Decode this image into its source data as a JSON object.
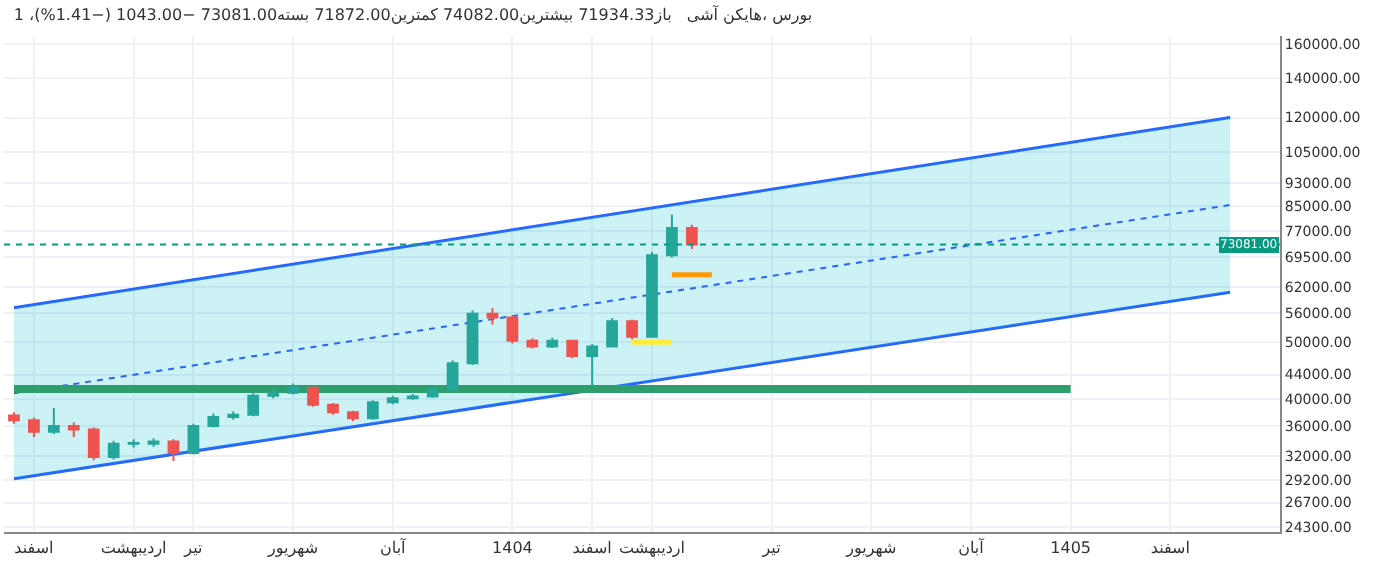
{
  "chart_data": {
    "type": "candlestick",
    "title": "1 ،بورس ،هایکن آشی   باز71934.33 بیشترین74082.00 کمترین71872.00 بسته73081.00 −1043.00 (−1.41%)",
    "categories": [
      null,
      "اسفند",
      null,
      null,
      null,
      null,
      "اردیبهشت",
      null,
      null,
      "تیر",
      null,
      null,
      null,
      null,
      "شهریور",
      null,
      null,
      null,
      null,
      "آبان",
      null,
      null,
      null,
      null,
      null,
      "1404",
      null,
      null,
      null,
      "اسفند",
      null,
      null,
      "اردیبهشت",
      null,
      null,
      null,
      null,
      null,
      "تیر",
      null,
      null,
      null,
      null,
      "شهریور",
      null,
      null,
      null,
      null,
      "آبان",
      null,
      null,
      null,
      null,
      "1405",
      null,
      null,
      null,
      null,
      "اسفند",
      null,
      null,
      null,
      null,
      null
    ],
    "ohlc": [
      [
        37500,
        38000,
        36300,
        36800
      ],
      [
        36800,
        37200,
        34500,
        35200
      ],
      [
        35200,
        38600,
        34900,
        36000
      ],
      [
        36000,
        36500,
        34500,
        35500
      ],
      [
        35500,
        35800,
        31500,
        31900
      ],
      [
        31900,
        34000,
        31600,
        33600
      ],
      [
        33600,
        34200,
        33100,
        33700
      ],
      [
        33600,
        34300,
        33200,
        33900
      ],
      [
        33900,
        34200,
        31400,
        32400
      ],
      [
        32400,
        36300,
        32200,
        36000
      ],
      [
        36000,
        37800,
        35800,
        37300
      ],
      [
        37300,
        38100,
        36900,
        37600
      ],
      [
        37600,
        40900,
        37400,
        40500
      ],
      [
        40500,
        41600,
        40100,
        41000
      ],
      [
        41000,
        42500,
        40700,
        41800
      ],
      [
        41800,
        42000,
        38800,
        39100
      ],
      [
        39100,
        39400,
        37600,
        38000
      ],
      [
        38000,
        38200,
        36700,
        37100
      ],
      [
        37100,
        39800,
        36900,
        39500
      ],
      [
        39500,
        40500,
        39200,
        40100
      ],
      [
        40100,
        40800,
        39900,
        40400
      ],
      [
        40400,
        41900,
        40200,
        41500
      ],
      [
        41500,
        46500,
        41300,
        46000
      ],
      [
        46000,
        56500,
        45700,
        55800
      ],
      [
        55800,
        57000,
        53500,
        55000
      ],
      [
        55000,
        55300,
        49700,
        50200
      ],
      [
        50200,
        50700,
        48700,
        49100
      ],
      [
        49100,
        50800,
        48800,
        50200
      ],
      [
        50200,
        50400,
        46900,
        47300
      ],
      [
        47300,
        49600,
        42200,
        49100
      ],
      [
        49100,
        54800,
        48900,
        54200
      ],
      [
        54200,
        54500,
        50500,
        51000
      ],
      [
        51000,
        71000,
        50800,
        70100
      ],
      [
        70100,
        82200,
        69500,
        78000
      ],
      [
        78000,
        79000,
        71872,
        73081
      ],
      null,
      null,
      null,
      null,
      null,
      null,
      null,
      null,
      null,
      null,
      null,
      null,
      null,
      null,
      null,
      null,
      null,
      null,
      null,
      null,
      null,
      null,
      null,
      null,
      null,
      null,
      null,
      null,
      null
    ],
    "series": [
      {
        "type": "line",
        "values": [
          57100,
          null,
          null,
          null,
          null,
          null,
          null,
          null,
          null,
          null,
          null,
          null,
          null,
          null,
          null,
          null,
          null,
          null,
          null,
          null,
          null,
          null,
          null,
          null,
          null,
          null,
          null,
          null,
          null,
          null,
          null,
          null,
          null,
          null,
          null,
          null,
          null,
          null,
          null,
          null,
          null,
          null,
          null,
          null,
          null,
          null,
          null,
          null,
          null,
          null,
          null,
          null,
          null,
          null,
          null,
          null,
          null,
          null,
          null,
          null,
          null,
          120000,
          null,
          null
        ],
        "color": "#2962ff",
        "line_style": "solid"
      },
      {
        "type": "line",
        "values": [
          29300,
          null,
          null,
          null,
          null,
          null,
          null,
          null,
          null,
          null,
          null,
          null,
          null,
          null,
          null,
          null,
          null,
          null,
          null,
          null,
          null,
          null,
          null,
          null,
          null,
          null,
          null,
          null,
          null,
          null,
          null,
          null,
          null,
          null,
          null,
          null,
          null,
          null,
          null,
          null,
          null,
          null,
          null,
          null,
          null,
          null,
          null,
          null,
          null,
          null,
          null,
          null,
          null,
          null,
          null,
          null,
          null,
          null,
          null,
          null,
          null,
          60700,
          null,
          null
        ],
        "color": "#2962ff",
        "line_style": "solid"
      },
      {
        "type": "line",
        "values": [
          40900,
          null,
          null,
          null,
          null,
          null,
          null,
          null,
          null,
          null,
          null,
          null,
          null,
          null,
          null,
          null,
          null,
          null,
          null,
          null,
          null,
          null,
          null,
          null,
          null,
          null,
          null,
          null,
          null,
          null,
          null,
          null,
          null,
          null,
          null,
          null,
          null,
          null,
          null,
          null,
          null,
          null,
          null,
          null,
          null,
          null,
          null,
          null,
          null,
          null,
          null,
          null,
          null,
          null,
          null,
          null,
          null,
          null,
          null,
          null,
          null,
          85300,
          null,
          null
        ],
        "lower": [
          29300,
          null,
          null,
          null,
          null,
          null,
          null,
          null,
          null,
          null,
          null,
          null,
          null,
          null,
          null,
          null,
          null,
          null,
          null,
          null,
          null,
          null,
          null,
          null,
          null,
          null,
          null,
          null,
          null,
          null,
          null,
          null,
          null,
          null,
          null,
          null,
          null,
          null,
          null,
          null,
          null,
          null,
          null,
          null,
          null,
          null,
          null,
          null,
          null,
          null,
          null,
          null,
          null,
          null,
          null,
          null,
          null,
          null,
          null,
          null,
          null,
          60700,
          null,
          null
        ],
        "upper": [
          57100,
          null,
          null,
          null,
          null,
          null,
          null,
          null,
          null,
          null,
          null,
          null,
          null,
          null,
          null,
          null,
          null,
          null,
          null,
          null,
          null,
          null,
          null,
          null,
          null,
          null,
          null,
          null,
          null,
          null,
          null,
          null,
          null,
          null,
          null,
          null,
          null,
          null,
          null,
          null,
          null,
          null,
          null,
          null,
          null,
          null,
          null,
          null,
          null,
          null,
          null,
          null,
          null,
          null,
          null,
          null,
          null,
          null,
          null,
          null,
          null,
          120000,
          null,
          null
        ],
        "color": "#2962ff",
        "line_style": "dotted"
      },
      {
        "type": "line",
        "values": [
          41600,
          null,
          null,
          null,
          null,
          null,
          null,
          null,
          null,
          null,
          null,
          null,
          null,
          null,
          null,
          null,
          null,
          null,
          null,
          null,
          null,
          null,
          null,
          null,
          null,
          null,
          null,
          null,
          null,
          null,
          null,
          null,
          null,
          null,
          null,
          null,
          null,
          null,
          null,
          null,
          null,
          null,
          null,
          null,
          null,
          null,
          null,
          null,
          null,
          null,
          null,
          null,
          null,
          41600,
          null,
          null,
          null,
          null,
          null,
          null,
          null,
          null,
          null,
          null
        ],
        "color": "#2e9e6e",
        "line_style": "solid"
      },
      {
        "type": "line",
        "values": [
          null,
          null,
          null,
          null,
          null,
          null,
          null,
          null,
          null,
          null,
          null,
          null,
          null,
          null,
          null,
          null,
          null,
          null,
          null,
          null,
          null,
          null,
          null,
          null,
          null,
          null,
          null,
          null,
          null,
          null,
          null,
          null,
          null,
          65000,
          null,
          65000,
          null,
          null,
          null,
          null,
          null,
          null,
          null,
          null,
          null,
          null,
          null,
          null,
          null,
          null,
          null,
          null,
          null,
          null,
          null,
          null,
          null,
          null,
          null,
          null,
          null,
          null,
          null,
          null
        ],
        "color": "#ff9800",
        "line_style": "solid"
      },
      {
        "type": "line",
        "values": [
          null,
          null,
          null,
          null,
          null,
          null,
          null,
          null,
          null,
          null,
          null,
          null,
          null,
          null,
          null,
          null,
          null,
          null,
          null,
          null,
          null,
          null,
          null,
          null,
          null,
          null,
          null,
          null,
          null,
          null,
          null,
          49900,
          null,
          49900,
          null,
          null,
          null,
          null,
          null,
          null,
          null,
          null,
          null,
          null,
          null,
          null,
          null,
          null,
          null,
          null,
          null,
          null,
          null,
          null,
          null,
          null,
          null,
          null,
          null,
          null,
          null,
          null,
          null,
          null
        ],
        "color": "#ffeb3b",
        "line_style": "solid"
      }
    ],
    "ref_lines": [
      {
        "axis": "y",
        "value": 73081,
        "label": "73081.00",
        "color": "#089981",
        "line_style": "dotted"
      }
    ],
    "log": "y",
    "ylim": [
      23800,
      165000
    ],
    "yticks": [
      {
        "value": 24300,
        "label": "24300.00"
      },
      {
        "value": 26700,
        "label": "26700.00"
      },
      {
        "value": 29200,
        "label": "29200.00"
      },
      {
        "value": 32000,
        "label": "32000.00"
      },
      {
        "value": 36000,
        "label": "36000.00"
      },
      {
        "value": 40000,
        "label": "40000.00"
      },
      {
        "value": 44000,
        "label": "44000.00"
      },
      {
        "value": 50000,
        "label": "50000.00"
      },
      {
        "value": 56000,
        "label": "56000.00"
      },
      {
        "value": 62000,
        "label": "62000.00"
      },
      {
        "value": 69500,
        "label": "69500.00"
      },
      {
        "value": 77000,
        "label": "77000.00"
      },
      {
        "value": 85000,
        "label": "85000.00"
      },
      {
        "value": 93000,
        "label": "93000.00"
      },
      {
        "value": 105000,
        "label": "105000.00"
      },
      {
        "value": 120000,
        "label": "120000.00"
      },
      {
        "value": 140000,
        "label": "140000.00"
      },
      {
        "value": 160000,
        "label": "160000.00"
      }
    ],
    "grid": true
  }
}
